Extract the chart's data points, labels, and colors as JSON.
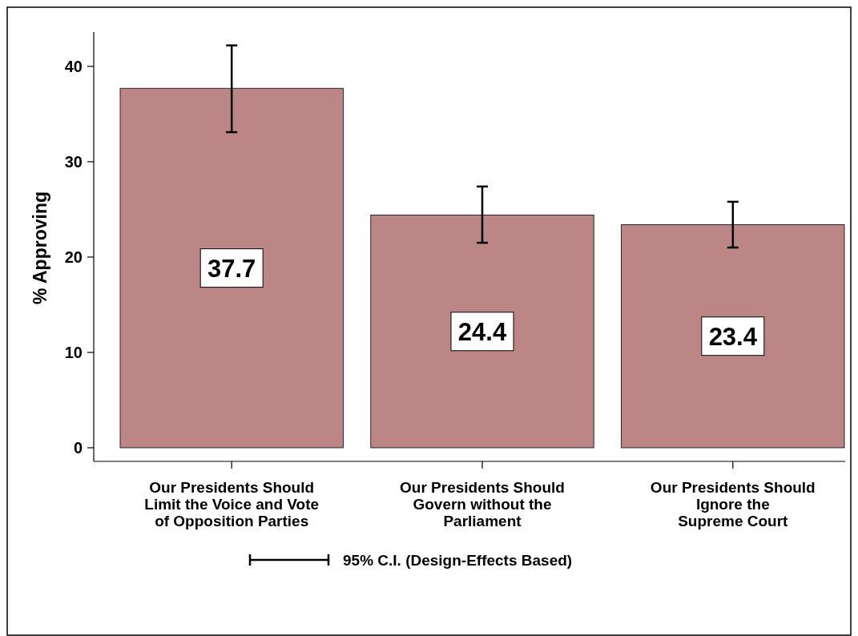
{
  "chart_data": {
    "type": "bar",
    "categories": [
      "Our Presidents Should\nLimit the Voice and Vote\nof Opposition Parties",
      "Our Presidents Should\nGovern without the\nParliament",
      "Our Presidents Should\nIgnore the\nSupreme Court"
    ],
    "values": [
      37.7,
      24.4,
      23.4
    ],
    "errors": [
      [
        33.1,
        42.2
      ],
      [
        21.5,
        27.4
      ],
      [
        21.0,
        25.8
      ]
    ],
    "color": "#bc8686",
    "ylabel": "% Approving",
    "ylim": [
      0,
      43.6
    ],
    "yticks": [
      0,
      10,
      20,
      30,
      40
    ],
    "data_labels": true,
    "annotations": [
      "95% C.I. (Design-Effects Based)"
    ]
  }
}
